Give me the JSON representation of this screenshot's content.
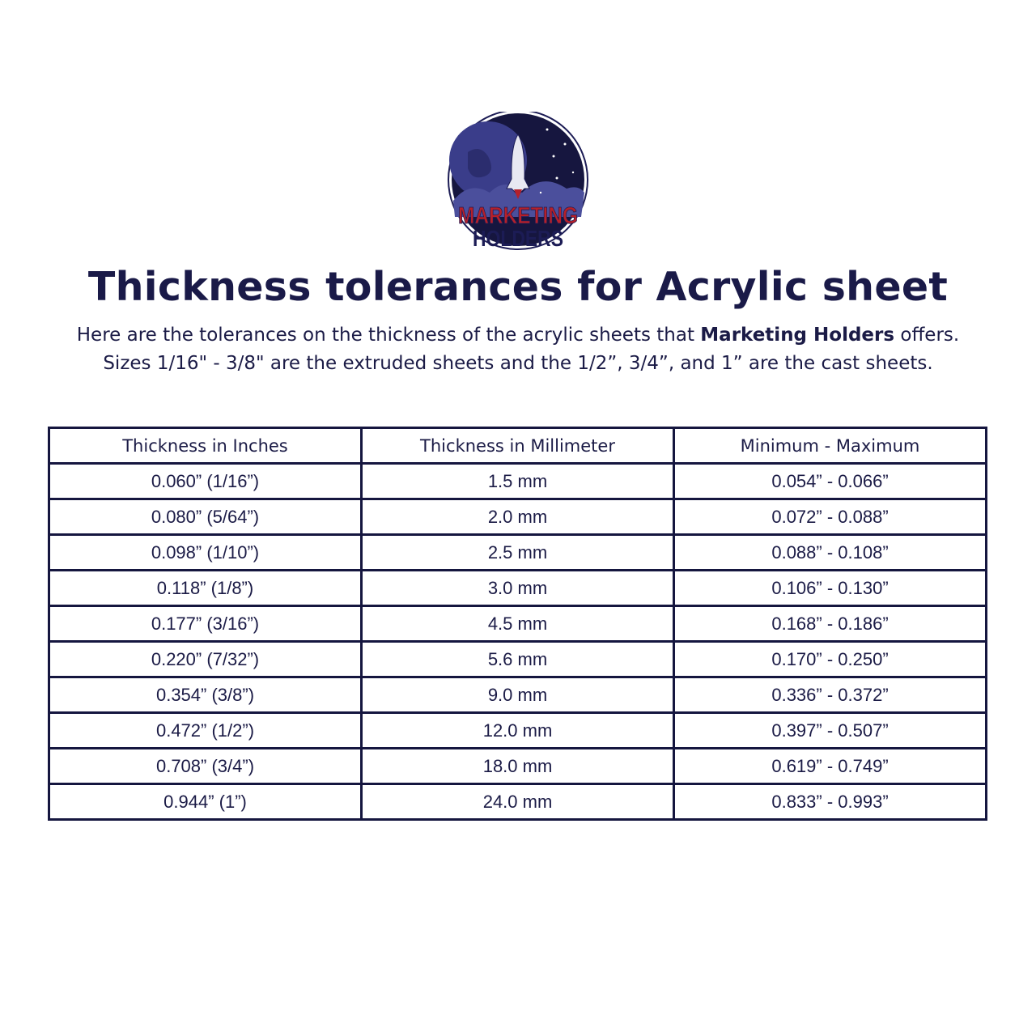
{
  "logo": {
    "text_line1": "MARKETING",
    "text_line2": "HOLDERS",
    "colors": {
      "navy": "#1c1c55",
      "red": "#b5202a",
      "space": "#16163f"
    }
  },
  "header": {
    "title": "Thickness tolerances for Acrylic sheet",
    "subtitle_line1_pre": "Here are the tolerances on the thickness of the acrylic sheets that ",
    "subtitle_line1_bold": "Marketing Holders",
    "subtitle_line1_post": " offers.",
    "subtitle_line2": "Sizes 1/16\" - 3/8\" are the extruded sheets and the 1/2”, 3/4”, and 1” are the cast sheets."
  },
  "table": {
    "headers": [
      "Thickness in Inches",
      "Thickness in Millimeter",
      "Minimum - Maximum"
    ],
    "rows": [
      [
        "0.060” (1/16”)",
        "1.5 mm",
        "0.054” - 0.066”"
      ],
      [
        "0.080” (5/64”)",
        "2.0 mm",
        "0.072” - 0.088”"
      ],
      [
        "0.098” (1/10”)",
        "2.5 mm",
        "0.088” - 0.108”"
      ],
      [
        "0.118” (1/8”)",
        "3.0 mm",
        "0.106” - 0.130”"
      ],
      [
        "0.177” (3/16”)",
        "4.5 mm",
        "0.168” - 0.186”"
      ],
      [
        "0.220” (7/32”)",
        "5.6 mm",
        "0.170” - 0.250”"
      ],
      [
        "0.354” (3/8”)",
        "9.0 mm",
        "0.336” - 0.372”"
      ],
      [
        "0.472” (1/2”)",
        "12.0 mm",
        "0.397” - 0.507”"
      ],
      [
        "0.708” (3/4”)",
        "18.0 mm",
        "0.619” - 0.749”"
      ],
      [
        "0.944” (1”)",
        "24.0 mm",
        "0.833” - 0.993”"
      ]
    ]
  }
}
